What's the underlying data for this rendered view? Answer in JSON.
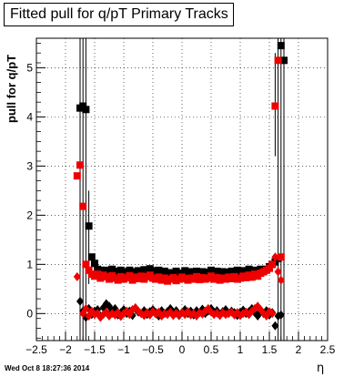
{
  "header": {
    "title": "Fitted pull for q/pT  Primary Tracks",
    "date_stamp": "Wed Oct  8 18:27:36 2014"
  },
  "chart_data": {
    "type": "scatter",
    "title": "Fitted pull for q/pT  Primary Tracks",
    "xlabel": "η",
    "ylabel": "pull for q/pT",
    "xlim": [
      -2.5,
      2.5
    ],
    "ylim": [
      -0.55,
      5.6
    ],
    "x_ticks": [
      "−2.5",
      "−2",
      "−1.5",
      "−1",
      "−0.5",
      "0",
      "0.5",
      "1",
      "1.5",
      "2",
      "2.5"
    ],
    "x_tick_values": [
      -2.5,
      -2,
      -1.5,
      -1,
      -0.5,
      0,
      0.5,
      1,
      1.5,
      2,
      2.5
    ],
    "y_ticks": [
      "0",
      "1",
      "2",
      "3",
      "4",
      "5"
    ],
    "y_tick_values": [
      0,
      1,
      2,
      3,
      4,
      5
    ],
    "grid": true,
    "colors": {
      "black": "#000000",
      "red": "#ee0000"
    },
    "series": [
      {
        "marker": "square",
        "color": "#000000",
        "points": [
          [
            -1.75,
            4.18
          ],
          [
            -1.7,
            4.22
          ],
          [
            -1.65,
            4.15
          ],
          [
            -1.6,
            1.78
          ],
          [
            -1.55,
            1.15
          ],
          [
            -1.5,
            1.02
          ],
          [
            -1.45,
            0.9
          ],
          [
            -1.4,
            0.88
          ],
          [
            -1.35,
            0.85
          ],
          [
            -1.3,
            0.88
          ],
          [
            -1.25,
            0.83
          ],
          [
            -1.2,
            0.9
          ],
          [
            -1.15,
            0.82
          ],
          [
            -1.1,
            0.86
          ],
          [
            -1.05,
            0.88
          ],
          [
            -1.0,
            0.8
          ],
          [
            -0.95,
            0.85
          ],
          [
            -0.9,
            0.88
          ],
          [
            -0.85,
            0.82
          ],
          [
            -0.8,
            0.85
          ],
          [
            -0.75,
            0.87
          ],
          [
            -0.7,
            0.84
          ],
          [
            -0.65,
            0.89
          ],
          [
            -0.6,
            0.86
          ],
          [
            -0.55,
            0.91
          ],
          [
            -0.5,
            0.87
          ],
          [
            -0.45,
            0.85
          ],
          [
            -0.4,
            0.88
          ],
          [
            -0.35,
            0.82
          ],
          [
            -0.3,
            0.86
          ],
          [
            -0.25,
            0.79
          ],
          [
            -0.2,
            0.83
          ],
          [
            -0.15,
            0.8
          ],
          [
            -0.1,
            0.86
          ],
          [
            -0.05,
            0.78
          ],
          [
            0.0,
            0.82
          ],
          [
            0.05,
            0.87
          ],
          [
            0.1,
            0.83
          ],
          [
            0.15,
            0.85
          ],
          [
            0.2,
            0.82
          ],
          [
            0.25,
            0.86
          ],
          [
            0.3,
            0.8
          ],
          [
            0.35,
            0.85
          ],
          [
            0.4,
            0.82
          ],
          [
            0.45,
            0.84
          ],
          [
            0.5,
            0.88
          ],
          [
            0.55,
            0.83
          ],
          [
            0.6,
            0.86
          ],
          [
            0.65,
            0.82
          ],
          [
            0.7,
            0.85
          ],
          [
            0.75,
            0.8
          ],
          [
            0.8,
            0.84
          ],
          [
            0.85,
            0.86
          ],
          [
            0.9,
            0.83
          ],
          [
            0.95,
            0.88
          ],
          [
            1.0,
            0.85
          ],
          [
            1.05,
            0.87
          ],
          [
            1.1,
            0.84
          ],
          [
            1.15,
            0.9
          ],
          [
            1.2,
            0.86
          ],
          [
            1.25,
            0.88
          ],
          [
            1.3,
            0.83
          ],
          [
            1.35,
            0.9
          ],
          [
            1.4,
            0.85
          ],
          [
            1.45,
            0.9
          ],
          [
            1.5,
            0.95
          ],
          [
            1.55,
            1.0
          ],
          [
            1.6,
            1.05
          ],
          [
            1.65,
            1.12
          ],
          [
            1.7,
            5.45
          ],
          [
            1.75,
            5.15
          ]
        ]
      },
      {
        "marker": "square",
        "color": "#ee0000",
        "points": [
          [
            -1.8,
            2.8
          ],
          [
            -1.75,
            3.02
          ],
          [
            -1.7,
            2.18
          ],
          [
            -1.65,
            1.0
          ],
          [
            -1.6,
            0.88
          ],
          [
            -1.55,
            0.8
          ],
          [
            -1.5,
            0.76
          ],
          [
            -1.45,
            0.8
          ],
          [
            -1.4,
            0.72
          ],
          [
            -1.35,
            0.78
          ],
          [
            -1.3,
            0.75
          ],
          [
            -1.25,
            0.7
          ],
          [
            -1.2,
            0.77
          ],
          [
            -1.15,
            0.72
          ],
          [
            -1.1,
            0.68
          ],
          [
            -1.05,
            0.75
          ],
          [
            -1.0,
            0.7
          ],
          [
            -0.95,
            0.73
          ],
          [
            -0.9,
            0.77
          ],
          [
            -0.85,
            0.68
          ],
          [
            -0.8,
            0.74
          ],
          [
            -0.75,
            0.71
          ],
          [
            -0.7,
            0.76
          ],
          [
            -0.65,
            0.7
          ],
          [
            -0.6,
            0.75
          ],
          [
            -0.55,
            0.78
          ],
          [
            -0.5,
            0.72
          ],
          [
            -0.45,
            0.7
          ],
          [
            -0.4,
            0.74
          ],
          [
            -0.35,
            0.68
          ],
          [
            -0.3,
            0.72
          ],
          [
            -0.25,
            0.66
          ],
          [
            -0.2,
            0.7
          ],
          [
            -0.15,
            0.73
          ],
          [
            -0.1,
            0.67
          ],
          [
            -0.05,
            0.7
          ],
          [
            0.0,
            0.74
          ],
          [
            0.05,
            0.71
          ],
          [
            0.1,
            0.68
          ],
          [
            0.15,
            0.72
          ],
          [
            0.2,
            0.7
          ],
          [
            0.25,
            0.75
          ],
          [
            0.3,
            0.69
          ],
          [
            0.35,
            0.73
          ],
          [
            0.4,
            0.7
          ],
          [
            0.45,
            0.72
          ],
          [
            0.5,
            0.76
          ],
          [
            0.55,
            0.7
          ],
          [
            0.6,
            0.73
          ],
          [
            0.65,
            0.68
          ],
          [
            0.7,
            0.72
          ],
          [
            0.75,
            0.7
          ],
          [
            0.8,
            0.74
          ],
          [
            0.85,
            0.71
          ],
          [
            0.9,
            0.75
          ],
          [
            0.95,
            0.7
          ],
          [
            1.0,
            0.72
          ],
          [
            1.05,
            0.76
          ],
          [
            1.1,
            0.73
          ],
          [
            1.15,
            0.78
          ],
          [
            1.2,
            0.74
          ],
          [
            1.25,
            0.8
          ],
          [
            1.3,
            0.76
          ],
          [
            1.35,
            0.82
          ],
          [
            1.4,
            0.85
          ],
          [
            1.45,
            0.88
          ],
          [
            1.5,
            0.92
          ],
          [
            1.55,
            1.0
          ],
          [
            1.6,
            4.22
          ],
          [
            1.65,
            5.15
          ],
          [
            1.7,
            1.15
          ]
        ]
      },
      {
        "marker": "diamond",
        "color": "#000000",
        "points": [
          [
            -1.75,
            0.25
          ],
          [
            -1.7,
            0.05
          ],
          [
            -1.65,
            -0.08
          ],
          [
            -1.6,
            0.1
          ],
          [
            -1.55,
            -0.02
          ],
          [
            -1.5,
            0.05
          ],
          [
            -1.45,
            0.08
          ],
          [
            -1.4,
            -0.05
          ],
          [
            -1.35,
            0.12
          ],
          [
            -1.3,
            0.2
          ],
          [
            -1.25,
            0.15
          ],
          [
            -1.2,
            0.05
          ],
          [
            -1.15,
            0.1
          ],
          [
            -1.1,
            -0.03
          ],
          [
            -1.05,
            0.02
          ],
          [
            -1.0,
            0.08
          ],
          [
            -0.95,
            0.0
          ],
          [
            -0.9,
            0.05
          ],
          [
            -0.85,
            -0.04
          ],
          [
            -0.8,
            0.1
          ],
          [
            -0.75,
            0.03
          ],
          [
            -0.7,
            0.0
          ],
          [
            -0.65,
            0.06
          ],
          [
            -0.6,
            -0.02
          ],
          [
            -0.55,
            0.04
          ],
          [
            -0.5,
            0.08
          ],
          [
            -0.45,
            0.02
          ],
          [
            -0.4,
            -0.05
          ],
          [
            -0.35,
            0.06
          ],
          [
            -0.3,
            0.0
          ],
          [
            -0.25,
            0.04
          ],
          [
            -0.2,
            0.1
          ],
          [
            -0.15,
            0.03
          ],
          [
            -0.1,
            0.06
          ],
          [
            -0.05,
            -0.04
          ],
          [
            0.0,
            0.02
          ],
          [
            0.05,
            0.08
          ],
          [
            0.1,
            0.0
          ],
          [
            0.15,
            0.05
          ],
          [
            0.2,
            -0.03
          ],
          [
            0.25,
            0.06
          ],
          [
            0.3,
            0.02
          ],
          [
            0.35,
            0.09
          ],
          [
            0.4,
            0.0
          ],
          [
            0.45,
            0.05
          ],
          [
            0.5,
            0.1
          ],
          [
            0.55,
            0.03
          ],
          [
            0.6,
            0.06
          ],
          [
            0.65,
            -0.02
          ],
          [
            0.7,
            0.04
          ],
          [
            0.75,
            0.08
          ],
          [
            0.8,
            0.0
          ],
          [
            0.85,
            0.05
          ],
          [
            0.9,
            0.02
          ],
          [
            0.95,
            -0.04
          ],
          [
            1.0,
            0.03
          ],
          [
            1.05,
            0.07
          ],
          [
            1.1,
            0.0
          ],
          [
            1.15,
            0.04
          ],
          [
            1.2,
            0.1
          ],
          [
            1.25,
            0.02
          ],
          [
            1.3,
            -0.05
          ],
          [
            1.35,
            0.05
          ],
          [
            1.4,
            0.0
          ],
          [
            1.45,
            0.06
          ],
          [
            1.5,
            -0.03
          ],
          [
            1.55,
            0.02
          ],
          [
            1.6,
            -0.25
          ],
          [
            1.65,
            -0.05
          ],
          [
            1.7,
            -0.03
          ]
        ]
      },
      {
        "marker": "diamond",
        "color": "#ee0000",
        "points": [
          [
            -1.8,
            0.75
          ],
          [
            -1.7,
            0.0
          ],
          [
            -1.65,
            0.1
          ],
          [
            -1.6,
            -0.05
          ],
          [
            -1.55,
            0.05
          ],
          [
            -1.5,
            -0.02
          ],
          [
            -1.45,
            0.0
          ],
          [
            -1.4,
            -0.08
          ],
          [
            -1.35,
            -0.02
          ],
          [
            -1.3,
            0.03
          ],
          [
            -1.25,
            -0.05
          ],
          [
            -1.2,
            0.0
          ],
          [
            -1.15,
            -0.03
          ],
          [
            -1.1,
            0.02
          ],
          [
            -1.05,
            -0.06
          ],
          [
            -1.0,
            0.0
          ],
          [
            -0.95,
            0.05
          ],
          [
            -0.9,
            -0.02
          ],
          [
            -0.85,
            0.08
          ],
          [
            -0.8,
            0.12
          ],
          [
            -0.75,
            0.05
          ],
          [
            -0.7,
            0.0
          ],
          [
            -0.65,
            -0.04
          ],
          [
            -0.6,
            0.02
          ],
          [
            -0.55,
            -0.03
          ],
          [
            -0.5,
            0.04
          ],
          [
            -0.45,
            -0.01
          ],
          [
            -0.4,
            0.03
          ],
          [
            -0.35,
            -0.05
          ],
          [
            -0.3,
            0.0
          ],
          [
            -0.25,
            -0.02
          ],
          [
            -0.2,
            0.03
          ],
          [
            -0.15,
            -0.04
          ],
          [
            -0.1,
            0.01
          ],
          [
            -0.05,
            -0.03
          ],
          [
            0.0,
            0.02
          ],
          [
            0.05,
            -0.02
          ],
          [
            0.1,
            0.04
          ],
          [
            0.15,
            -0.03
          ],
          [
            0.2,
            0.0
          ],
          [
            0.25,
            -0.05
          ],
          [
            0.3,
            0.02
          ],
          [
            0.35,
            -0.01
          ],
          [
            0.4,
            0.05
          ],
          [
            0.45,
            0.1
          ],
          [
            0.5,
            0.03
          ],
          [
            0.55,
            -0.02
          ],
          [
            0.6,
            0.01
          ],
          [
            0.65,
            -0.04
          ],
          [
            0.7,
            0.02
          ],
          [
            0.75,
            -0.02
          ],
          [
            0.8,
            0.0
          ],
          [
            0.85,
            0.03
          ],
          [
            0.9,
            -0.03
          ],
          [
            0.95,
            0.02
          ],
          [
            1.0,
            -0.04
          ],
          [
            1.05,
            0.0
          ],
          [
            1.1,
            0.03
          ],
          [
            1.15,
            -0.02
          ],
          [
            1.2,
            0.05
          ],
          [
            1.25,
            0.1
          ],
          [
            1.3,
            0.15
          ],
          [
            1.35,
            0.08
          ],
          [
            1.4,
            0.0
          ],
          [
            1.45,
            -0.05
          ],
          [
            1.5,
            0.04
          ],
          [
            1.55,
            0.0
          ],
          [
            1.6,
            1.15
          ],
          [
            1.65,
            0.85
          ],
          [
            1.7,
            0.68
          ]
        ]
      }
    ],
    "error_bars": [
      {
        "x": -1.75,
        "y_low": -0.6,
        "y_high": 5.6
      },
      {
        "x": -1.7,
        "y_low": -0.6,
        "y_high": 5.6
      },
      {
        "x": -1.65,
        "y_low": -0.6,
        "y_high": 5.6
      },
      {
        "x": -1.6,
        "y_low": 0.6,
        "y_high": 2.5
      },
      {
        "x": 1.6,
        "y_low": 3.2,
        "y_high": 5.3
      },
      {
        "x": 1.65,
        "y_low": -0.6,
        "y_high": 5.6
      },
      {
        "x": 1.7,
        "y_low": -0.6,
        "y_high": 5.6
      },
      {
        "x": 1.75,
        "y_low": -0.6,
        "y_high": 5.6
      }
    ]
  }
}
